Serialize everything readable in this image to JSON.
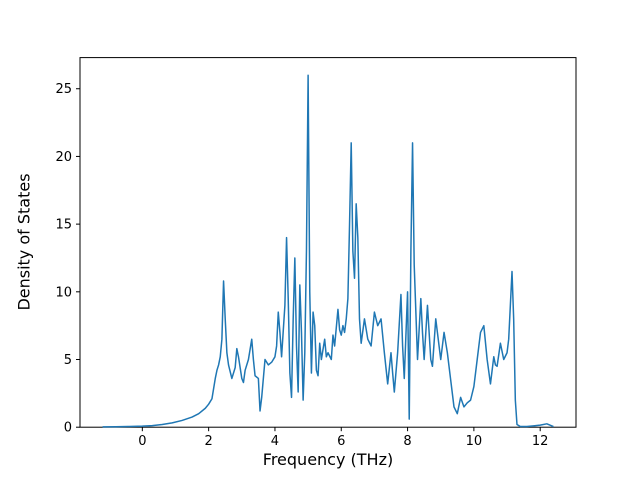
{
  "figure": {
    "background": "#ffffff"
  },
  "chart_data": {
    "type": "line",
    "title": "",
    "xlabel": "Frequency (THz)",
    "ylabel": "Density of States",
    "xlim": [
      -1.88,
      13.08
    ],
    "ylim": [
      0,
      27.3
    ],
    "xticks": [
      0,
      2,
      4,
      6,
      8,
      10,
      12
    ],
    "yticks": [
      0,
      5,
      10,
      15,
      20,
      25
    ],
    "grid": false,
    "legend_position": "none",
    "line_color": "#1f77b4",
    "line_width": 1.5,
    "frame_color": "#000000",
    "series": [
      {
        "name": "Density of States",
        "points": [
          [
            -1.2,
            0.02
          ],
          [
            -0.8,
            0.03
          ],
          [
            -0.4,
            0.05
          ],
          [
            0.0,
            0.08
          ],
          [
            0.3,
            0.12
          ],
          [
            0.6,
            0.2
          ],
          [
            0.9,
            0.32
          ],
          [
            1.2,
            0.5
          ],
          [
            1.5,
            0.75
          ],
          [
            1.7,
            1.0
          ],
          [
            1.9,
            1.4
          ],
          [
            2.0,
            1.7
          ],
          [
            2.1,
            2.1
          ],
          [
            2.2,
            3.6
          ],
          [
            2.25,
            4.2
          ],
          [
            2.3,
            4.6
          ],
          [
            2.35,
            5.2
          ],
          [
            2.4,
            6.5
          ],
          [
            2.45,
            10.8
          ],
          [
            2.5,
            8.0
          ],
          [
            2.55,
            5.5
          ],
          [
            2.6,
            4.6
          ],
          [
            2.7,
            3.6
          ],
          [
            2.8,
            4.4
          ],
          [
            2.85,
            5.8
          ],
          [
            2.9,
            5.2
          ],
          [
            3.0,
            3.6
          ],
          [
            3.05,
            3.3
          ],
          [
            3.1,
            4.2
          ],
          [
            3.2,
            5.0
          ],
          [
            3.3,
            6.5
          ],
          [
            3.35,
            5.0
          ],
          [
            3.4,
            3.8
          ],
          [
            3.5,
            3.6
          ],
          [
            3.55,
            1.2
          ],
          [
            3.6,
            2.2
          ],
          [
            3.7,
            5.0
          ],
          [
            3.8,
            4.6
          ],
          [
            3.9,
            4.8
          ],
          [
            4.0,
            5.2
          ],
          [
            4.05,
            6.0
          ],
          [
            4.1,
            8.5
          ],
          [
            4.15,
            7.0
          ],
          [
            4.2,
            5.2
          ],
          [
            4.3,
            9.0
          ],
          [
            4.35,
            14.0
          ],
          [
            4.4,
            9.5
          ],
          [
            4.45,
            4.0
          ],
          [
            4.5,
            2.2
          ],
          [
            4.55,
            8.0
          ],
          [
            4.6,
            12.5
          ],
          [
            4.65,
            6.0
          ],
          [
            4.7,
            2.6
          ],
          [
            4.75,
            10.5
          ],
          [
            4.8,
            7.0
          ],
          [
            4.85,
            2.0
          ],
          [
            4.9,
            5.5
          ],
          [
            4.95,
            13.0
          ],
          [
            5.0,
            26.0
          ],
          [
            5.05,
            10.0
          ],
          [
            5.1,
            4.0
          ],
          [
            5.15,
            8.5
          ],
          [
            5.2,
            7.5
          ],
          [
            5.25,
            4.2
          ],
          [
            5.3,
            3.8
          ],
          [
            5.35,
            6.2
          ],
          [
            5.4,
            5.0
          ],
          [
            5.5,
            6.5
          ],
          [
            5.55,
            5.2
          ],
          [
            5.6,
            5.5
          ],
          [
            5.7,
            5.0
          ],
          [
            5.75,
            6.8
          ],
          [
            5.8,
            6.0
          ],
          [
            5.9,
            8.7
          ],
          [
            5.95,
            7.2
          ],
          [
            6.0,
            6.8
          ],
          [
            6.05,
            7.5
          ],
          [
            6.1,
            7.0
          ],
          [
            6.15,
            8.0
          ],
          [
            6.2,
            9.5
          ],
          [
            6.25,
            15.0
          ],
          [
            6.3,
            21.0
          ],
          [
            6.35,
            13.0
          ],
          [
            6.4,
            11.0
          ],
          [
            6.45,
            16.5
          ],
          [
            6.5,
            14.0
          ],
          [
            6.55,
            8.0
          ],
          [
            6.6,
            6.2
          ],
          [
            6.7,
            8.0
          ],
          [
            6.8,
            6.5
          ],
          [
            6.9,
            6.0
          ],
          [
            7.0,
            8.5
          ],
          [
            7.1,
            7.5
          ],
          [
            7.2,
            8.0
          ],
          [
            7.3,
            5.5
          ],
          [
            7.4,
            3.2
          ],
          [
            7.5,
            5.5
          ],
          [
            7.55,
            4.0
          ],
          [
            7.6,
            2.6
          ],
          [
            7.7,
            5.5
          ],
          [
            7.8,
            9.8
          ],
          [
            7.85,
            6.0
          ],
          [
            7.9,
            3.6
          ],
          [
            8.0,
            10.0
          ],
          [
            8.05,
            0.6
          ],
          [
            8.1,
            13.0
          ],
          [
            8.15,
            21.0
          ],
          [
            8.2,
            12.0
          ],
          [
            8.3,
            5.0
          ],
          [
            8.4,
            9.5
          ],
          [
            8.45,
            7.0
          ],
          [
            8.5,
            5.0
          ],
          [
            8.6,
            9.0
          ],
          [
            8.7,
            5.0
          ],
          [
            8.75,
            4.5
          ],
          [
            8.85,
            8.0
          ],
          [
            8.9,
            7.0
          ],
          [
            9.0,
            5.0
          ],
          [
            9.1,
            7.0
          ],
          [
            9.2,
            5.5
          ],
          [
            9.3,
            3.5
          ],
          [
            9.4,
            1.5
          ],
          [
            9.5,
            1.0
          ],
          [
            9.6,
            2.2
          ],
          [
            9.7,
            1.5
          ],
          [
            9.8,
            1.8
          ],
          [
            9.9,
            2.0
          ],
          [
            10.0,
            3.0
          ],
          [
            10.1,
            5.0
          ],
          [
            10.2,
            7.0
          ],
          [
            10.3,
            7.5
          ],
          [
            10.4,
            5.0
          ],
          [
            10.5,
            3.2
          ],
          [
            10.6,
            5.2
          ],
          [
            10.65,
            4.6
          ],
          [
            10.7,
            4.5
          ],
          [
            10.8,
            6.2
          ],
          [
            10.9,
            5.0
          ],
          [
            11.0,
            5.5
          ],
          [
            11.05,
            6.5
          ],
          [
            11.1,
            9.0
          ],
          [
            11.15,
            11.5
          ],
          [
            11.2,
            8.0
          ],
          [
            11.25,
            2.0
          ],
          [
            11.3,
            0.2
          ],
          [
            11.4,
            0.05
          ],
          [
            11.6,
            0.05
          ],
          [
            11.8,
            0.1
          ],
          [
            12.0,
            0.15
          ],
          [
            12.2,
            0.25
          ],
          [
            12.3,
            0.15
          ],
          [
            12.4,
            0.05
          ]
        ]
      }
    ]
  }
}
